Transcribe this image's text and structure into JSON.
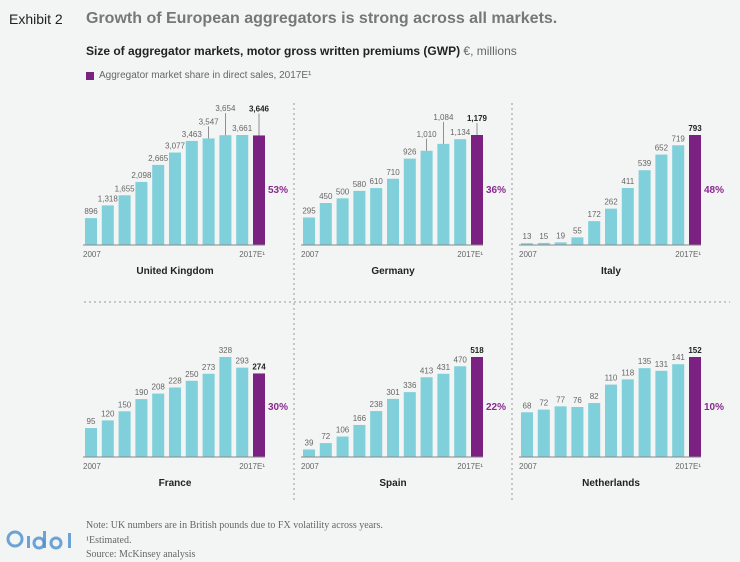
{
  "header": {
    "exhibit": "Exhibit 2",
    "title": "Growth of European aggregators is strong across all markets.",
    "subtitle": "Size of aggregator markets, motor gross written premiums (GWP)",
    "unit": "€, millions",
    "legend": "Aggregator market share in direct sales, 2017E¹"
  },
  "colors": {
    "bar": "#7fd0da",
    "highlight": "#7b2182",
    "share_text": "#8a2a90"
  },
  "chart_data": [
    {
      "type": "bar",
      "title": "United Kingdom",
      "x_start": "2007",
      "x_end": "2017E¹",
      "values": [
        896,
        1318,
        1655,
        2098,
        2665,
        3077,
        3463,
        3547,
        3654,
        3661,
        3646
      ],
      "labels": [
        "896",
        "1,318",
        "1,655",
        "2,098",
        "2,665",
        "3,077",
        "3,463",
        "3,547",
        "3,654",
        "3,661",
        "3,646"
      ],
      "share": "53%"
    },
    {
      "type": "bar",
      "title": "Germany",
      "x_start": "2007",
      "x_end": "2017E¹",
      "values": [
        295,
        450,
        500,
        580,
        610,
        710,
        926,
        1010,
        1084,
        1134,
        1179
      ],
      "labels": [
        "295",
        "450",
        "500",
        "580",
        "610",
        "710",
        "926",
        "1,010",
        "1,084",
        "1,134",
        "1,179"
      ],
      "share": "36%"
    },
    {
      "type": "bar",
      "title": "Italy",
      "x_start": "2007",
      "x_end": "2017E¹",
      "values": [
        13,
        15,
        19,
        55,
        172,
        262,
        411,
        539,
        652,
        719,
        793
      ],
      "labels": [
        "13",
        "15",
        "19",
        "55",
        "172",
        "262",
        "411",
        "539",
        "652",
        "719",
        "793"
      ],
      "share": "48%"
    },
    {
      "type": "bar",
      "title": "France",
      "x_start": "2007",
      "x_end": "2017E¹",
      "values": [
        95,
        120,
        150,
        190,
        208,
        228,
        250,
        273,
        328,
        293,
        274
      ],
      "labels": [
        "95",
        "120",
        "150",
        "190",
        "208",
        "228",
        "250",
        "273",
        "328",
        "293",
        "274"
      ],
      "share": "30%"
    },
    {
      "type": "bar",
      "title": "Spain",
      "x_start": "2007",
      "x_end": "2017E¹",
      "values": [
        39,
        72,
        106,
        166,
        238,
        301,
        336,
        413,
        431,
        470,
        518
      ],
      "labels": [
        "39",
        "72",
        "106",
        "166",
        "238",
        "301",
        "336",
        "413",
        "431",
        "470",
        "518"
      ],
      "share": "22%"
    },
    {
      "type": "bar",
      "title": "Netherlands",
      "x_start": "2007",
      "x_end": "2017E¹",
      "values": [
        68,
        72,
        77,
        76,
        82,
        110,
        118,
        135,
        131,
        141,
        152
      ],
      "labels": [
        "68",
        "72",
        "77",
        "76",
        "82",
        "110",
        "118",
        "135",
        "131",
        "141",
        "152"
      ],
      "share": "10%"
    }
  ],
  "footer": {
    "note": "Note: UK numbers are in British pounds due to FX volatility across years.",
    "estimated": "¹Estimated.",
    "source": "Source: McKinsey analysis"
  },
  "watermark": "gidat"
}
